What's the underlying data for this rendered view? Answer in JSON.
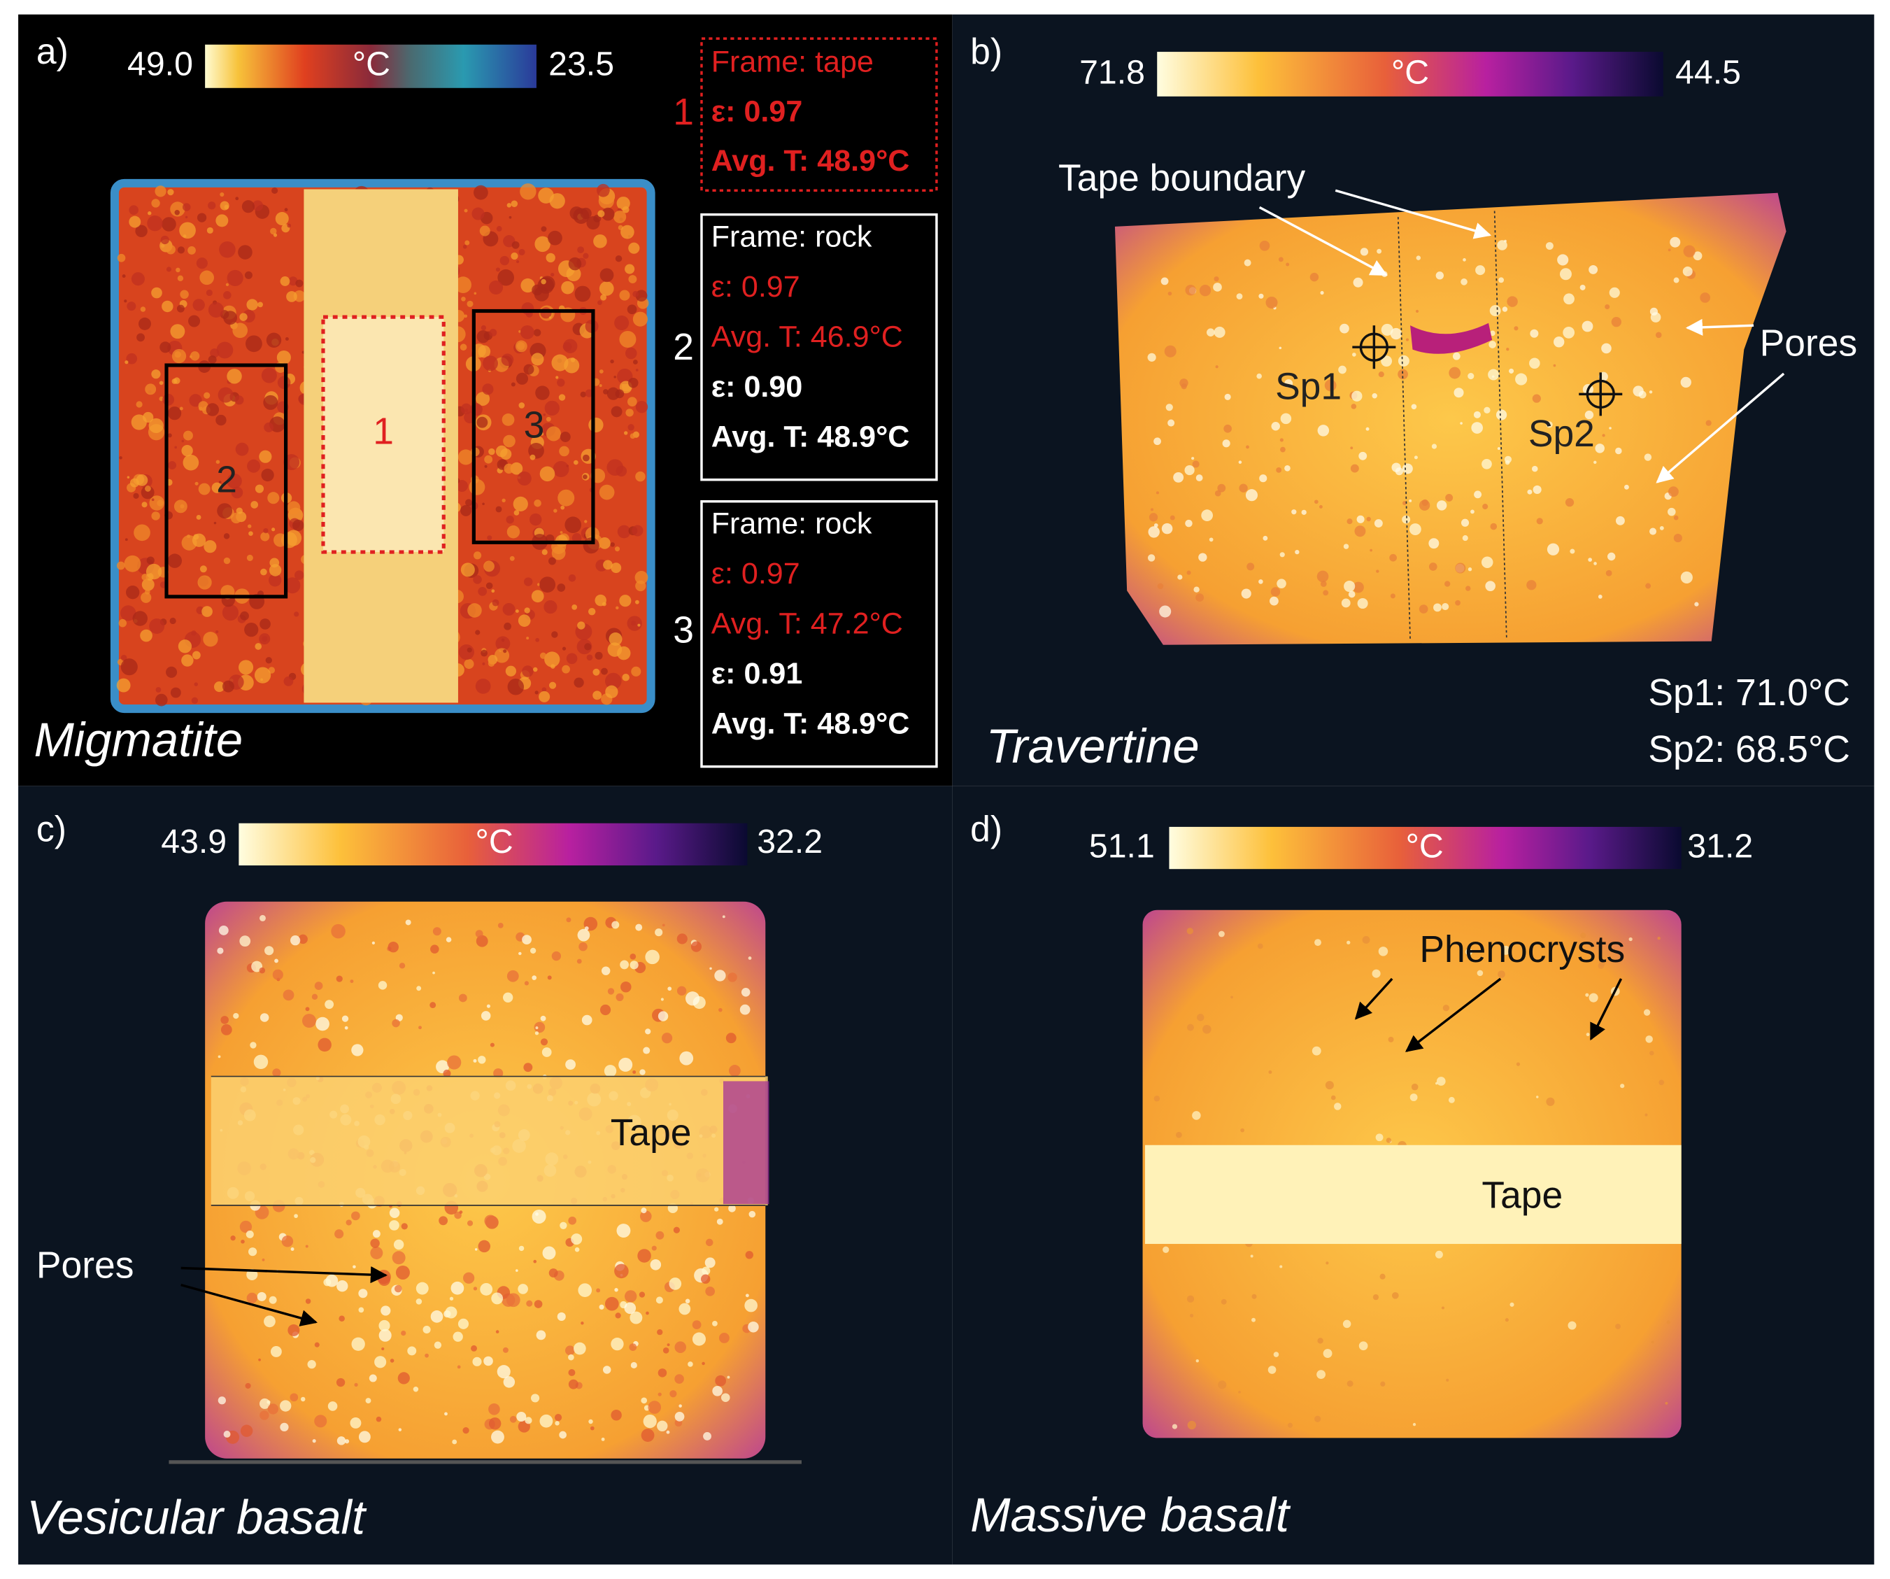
{
  "panels": [
    {
      "label": "a)",
      "colorbar": {
        "max": "49.0",
        "unit": "°C",
        "min": "23.5"
      },
      "name": "Migmatite",
      "regions": [
        "1",
        "2",
        "3"
      ],
      "frames": [
        {
          "number": "1",
          "lines": [
            "Frame: tape",
            "ε: 0.97",
            "Avg. T: 48.9°C"
          ]
        },
        {
          "number": "2",
          "lines": [
            "Frame: rock",
            "ε: 0.97",
            "Avg. T: 46.9°C",
            "ε: 0.90",
            "Avg. T: 48.9°C"
          ]
        },
        {
          "number": "3",
          "lines": [
            "Frame: rock",
            "ε: 0.97",
            "Avg. T: 47.2°C",
            "ε: 0.91",
            "Avg. T: 48.9°C"
          ]
        }
      ]
    },
    {
      "label": "b)",
      "colorbar": {
        "max": "71.8",
        "unit": "°C",
        "min": "44.5"
      },
      "name": "Travertine",
      "annotations": [
        "Tape boundary",
        "Pores",
        "Sp1",
        "Sp2"
      ],
      "readings": [
        "Sp1: 71.0°C",
        "Sp2: 68.5°C"
      ]
    },
    {
      "label": "c)",
      "colorbar": {
        "max": "43.9",
        "unit": "°C",
        "min": "32.2"
      },
      "name": "Vesicular basalt",
      "annotations": [
        "Tape",
        "Pores"
      ]
    },
    {
      "label": "d)",
      "colorbar": {
        "max": "51.1",
        "unit": "°C",
        "min": "31.2"
      },
      "name": "Massive basalt",
      "annotations": [
        "Phenocrysts",
        "Tape"
      ]
    }
  ]
}
